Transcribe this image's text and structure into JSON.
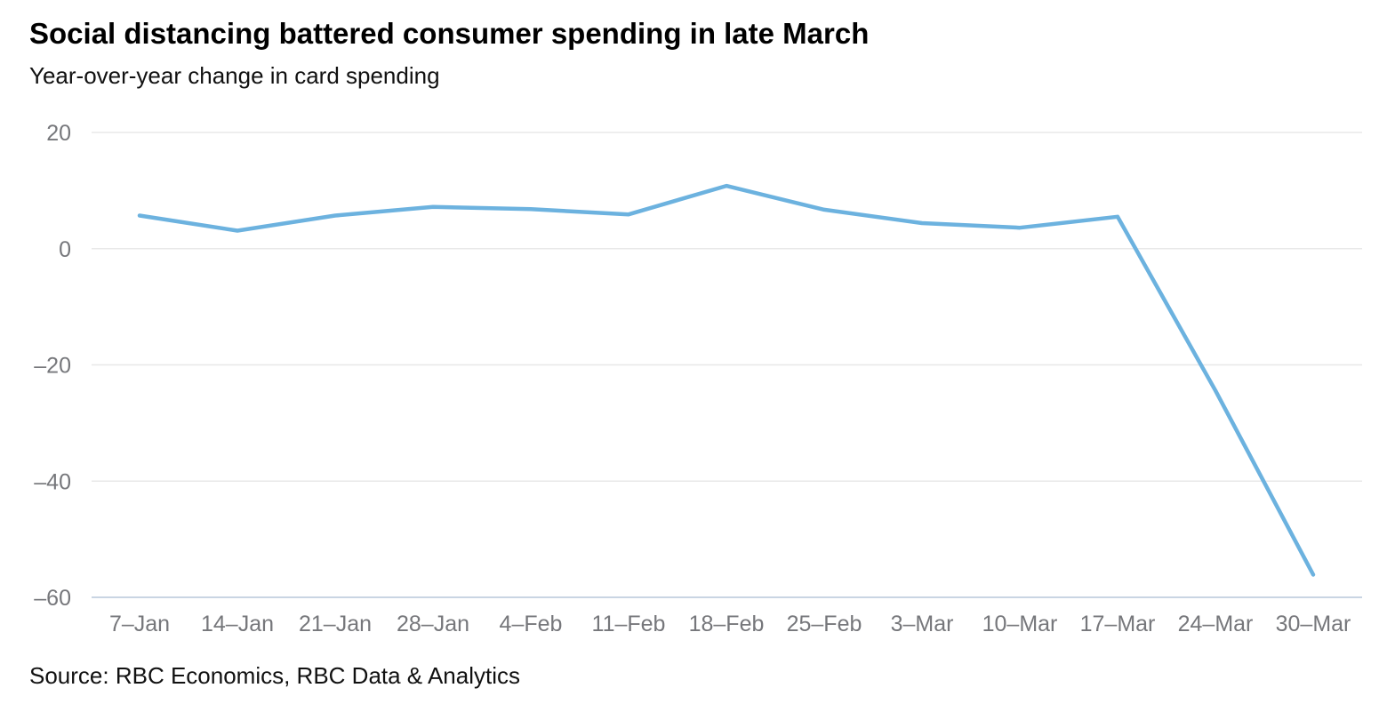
{
  "chart_data": {
    "type": "line",
    "title": "Social distancing battered consumer spending in late March",
    "subtitle": "Year-over-year change in card spending",
    "source": "Source: RBC Economics, RBC Data & Analytics",
    "categories": [
      "7–Jan",
      "14–Jan",
      "21–Jan",
      "28–Jan",
      "4–Feb",
      "11–Feb",
      "18–Feb",
      "25–Feb",
      "3–Mar",
      "10–Mar",
      "17–Mar",
      "24–Mar",
      "30–Mar"
    ],
    "series": [
      {
        "name": "Year-over-year change in card spending",
        "values": [
          5.7,
          3.1,
          5.7,
          7.2,
          6.8,
          5.9,
          10.8,
          6.7,
          4.4,
          3.6,
          5.5,
          -24.4,
          -56.1
        ]
      }
    ],
    "xlabel": "",
    "ylabel": "",
    "ylim": [
      -60,
      20
    ],
    "yticks": [
      20,
      0,
      -20,
      -40,
      -60
    ],
    "ytick_labels": [
      "20",
      "0",
      "–20",
      "–40",
      "–60"
    ],
    "grid": true,
    "legend": false
  },
  "colors": {
    "line": "#6cb2df",
    "grid": "#e8e8e8",
    "axis_line": "#c9d5e3",
    "tick_text": "#76777b",
    "title_text": "#000000"
  }
}
